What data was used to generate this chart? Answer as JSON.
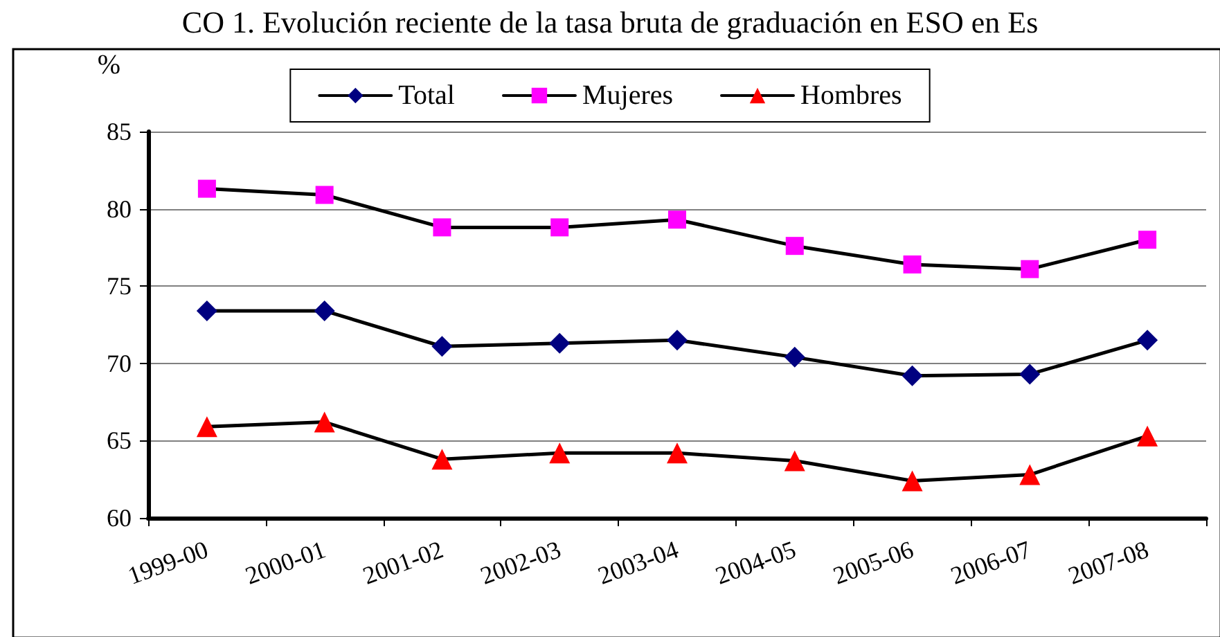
{
  "chart_data": {
    "type": "line",
    "title": "CO 1. Evolución reciente de la tasa bruta de graduación en ESO en Es",
    "ylabel": "%",
    "categories": [
      "1999-00",
      "2000-01",
      "2001-02",
      "2002-03",
      "2003-04",
      "2004-05",
      "2005-06",
      "2006-07",
      "2007-08"
    ],
    "series": [
      {
        "name": "Total",
        "color": "#000080",
        "marker": "diamond",
        "values": [
          73.4,
          73.4,
          71.1,
          71.3,
          71.5,
          70.4,
          69.2,
          69.3,
          71.5
        ]
      },
      {
        "name": "Mujeres",
        "color": "#ff00ff",
        "marker": "square",
        "values": [
          81.3,
          80.9,
          78.8,
          78.8,
          79.3,
          77.6,
          76.4,
          76.1,
          78.0
        ]
      },
      {
        "name": "Hombres",
        "color": "#ff0000",
        "marker": "triangle",
        "values": [
          65.9,
          66.2,
          63.8,
          64.2,
          64.2,
          63.7,
          62.4,
          62.8,
          65.3
        ]
      }
    ],
    "ylim": [
      60,
      85
    ],
    "yticks": [
      60,
      65,
      70,
      75,
      80,
      85
    ],
    "grid": "y",
    "legend": "top",
    "line_style": "solid"
  }
}
